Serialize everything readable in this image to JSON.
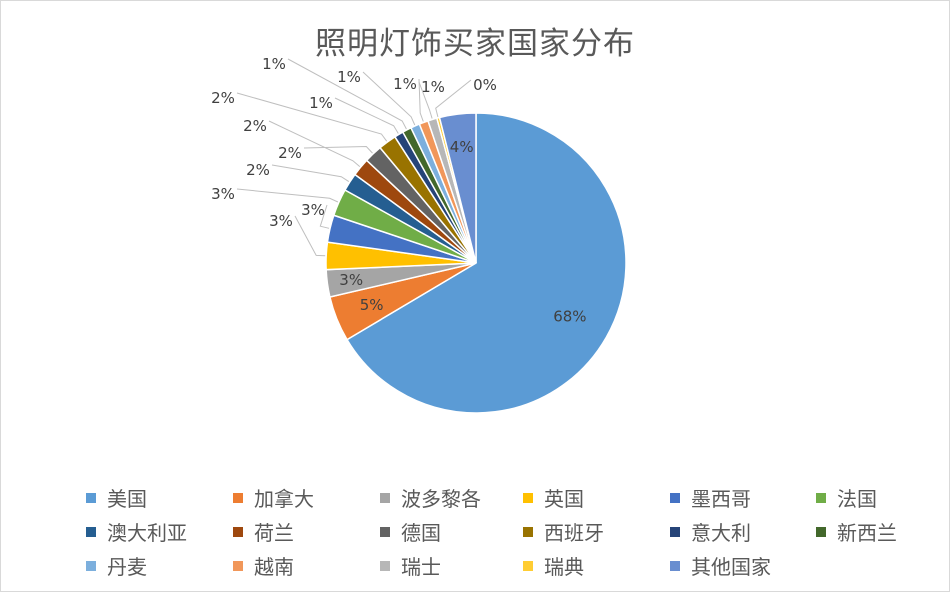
{
  "chart_data": {
    "type": "pie",
    "title": "照明灯饰买家国家分布",
    "legend_position": "bottom",
    "slices": [
      {
        "label": "美国",
        "value": 68,
        "display": "68%",
        "color": "#5b9bd5"
      },
      {
        "label": "加拿大",
        "value": 5,
        "display": "5%",
        "color": "#ed7d31"
      },
      {
        "label": "波多黎各",
        "value": 3,
        "display": "3%",
        "color": "#a5a5a5"
      },
      {
        "label": "英国",
        "value": 3,
        "display": "3%",
        "color": "#ffc000"
      },
      {
        "label": "墨西哥",
        "value": 3,
        "display": "3%",
        "color": "#4472c4"
      },
      {
        "label": "法国",
        "value": 3,
        "display": "3%",
        "color": "#70ad47"
      },
      {
        "label": "澳大利亚",
        "value": 2,
        "display": "2%",
        "color": "#255e91"
      },
      {
        "label": "荷兰",
        "value": 2,
        "display": "2%",
        "color": "#9e480e"
      },
      {
        "label": "德国",
        "value": 2,
        "display": "2%",
        "color": "#636363"
      },
      {
        "label": "西班牙",
        "value": 2,
        "display": "2%",
        "color": "#997300"
      },
      {
        "label": "意大利",
        "value": 1,
        "display": "1%",
        "color": "#264478"
      },
      {
        "label": "新西兰",
        "value": 1,
        "display": "1%",
        "color": "#43682b"
      },
      {
        "label": "丹麦",
        "value": 1,
        "display": "1%",
        "color": "#7cafdd"
      },
      {
        "label": "越南",
        "value": 1,
        "display": "1%",
        "color": "#f1975a"
      },
      {
        "label": "瑞士",
        "value": 1,
        "display": "1%",
        "color": "#b7b7b7"
      },
      {
        "label": "瑞典",
        "value": 0.3,
        "display": "0%",
        "color": "#ffcd33"
      },
      {
        "label": "其他国家",
        "value": 4,
        "display": "4%",
        "color": "#698ed0"
      }
    ]
  }
}
